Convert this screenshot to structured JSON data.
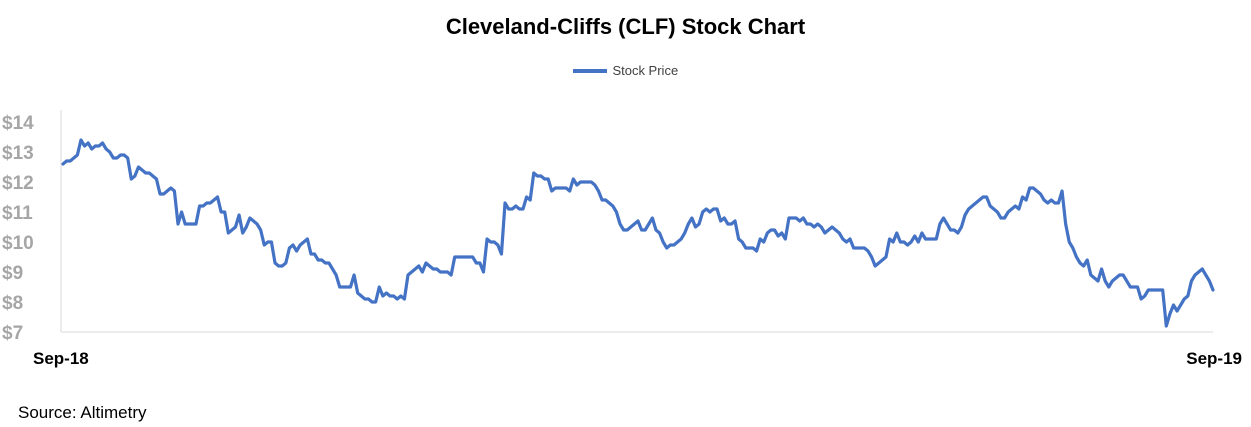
{
  "chart_data": {
    "type": "line",
    "title": "Cleveland-Cliffs (CLF) Stock Chart",
    "legend": "top-center",
    "series": [
      {
        "name": "Stock Price",
        "color": "#4472C4",
        "values": [
          12.6,
          12.7,
          12.7,
          12.8,
          12.9,
          13.4,
          13.2,
          13.3,
          13.1,
          13.2,
          13.2,
          13.3,
          13.1,
          13.0,
          12.8,
          12.8,
          12.9,
          12.9,
          12.8,
          12.1,
          12.2,
          12.5,
          12.4,
          12.3,
          12.3,
          12.2,
          12.1,
          11.6,
          11.6,
          11.7,
          11.8,
          11.7,
          10.6,
          11.0,
          10.6,
          10.6,
          10.6,
          10.6,
          11.2,
          11.2,
          11.3,
          11.3,
          11.4,
          11.5,
          11.0,
          11.0,
          10.3,
          10.4,
          10.5,
          10.9,
          10.3,
          10.5,
          10.8,
          10.7,
          10.6,
          10.4,
          9.9,
          10.0,
          10.0,
          9.3,
          9.2,
          9.2,
          9.3,
          9.8,
          9.9,
          9.7,
          9.9,
          10.0,
          10.1,
          9.6,
          9.6,
          9.4,
          9.4,
          9.3,
          9.3,
          9.1,
          8.9,
          8.5,
          8.5,
          8.5,
          8.5,
          8.9,
          8.3,
          8.2,
          8.1,
          8.1,
          8.0,
          8.0,
          8.5,
          8.2,
          8.3,
          8.2,
          8.2,
          8.1,
          8.2,
          8.1,
          8.9,
          9.0,
          9.1,
          9.2,
          9.0,
          9.3,
          9.2,
          9.1,
          9.1,
          9.0,
          9.0,
          9.0,
          8.9,
          9.5,
          9.5,
          9.5,
          9.5,
          9.5,
          9.5,
          9.3,
          9.3,
          9.0,
          10.1,
          10.0,
          10.0,
          9.9,
          9.6,
          11.3,
          11.1,
          11.1,
          11.2,
          11.1,
          11.1,
          11.5,
          11.4,
          12.3,
          12.2,
          12.2,
          12.1,
          12.1,
          11.7,
          11.8,
          11.8,
          11.8,
          11.8,
          11.7,
          12.1,
          11.9,
          12.0,
          12.0,
          12.0,
          12.0,
          11.9,
          11.7,
          11.4,
          11.4,
          11.3,
          11.2,
          11.0,
          10.6,
          10.4,
          10.4,
          10.5,
          10.6,
          10.7,
          10.4,
          10.4,
          10.6,
          10.8,
          10.4,
          10.3,
          10.0,
          9.8,
          9.9,
          9.9,
          10.0,
          10.1,
          10.3,
          10.6,
          10.8,
          10.5,
          10.6,
          11.0,
          11.1,
          11.0,
          11.1,
          11.1,
          10.7,
          10.8,
          10.6,
          10.6,
          10.7,
          10.1,
          10.0,
          9.8,
          9.8,
          9.8,
          9.7,
          10.1,
          10.0,
          10.3,
          10.4,
          10.4,
          10.2,
          10.3,
          10.1,
          10.8,
          10.8,
          10.8,
          10.7,
          10.8,
          10.6,
          10.6,
          10.5,
          10.6,
          10.5,
          10.3,
          10.4,
          10.5,
          10.4,
          10.3,
          10.1,
          10.0,
          10.1,
          9.8,
          9.8,
          9.8,
          9.8,
          9.7,
          9.5,
          9.2,
          9.3,
          9.4,
          9.5,
          10.1,
          10.0,
          10.3,
          10.0,
          10.0,
          9.9,
          10.0,
          10.2,
          10.0,
          10.3,
          10.1,
          10.1,
          10.1,
          10.1,
          10.6,
          10.8,
          10.6,
          10.4,
          10.4,
          10.3,
          10.5,
          10.9,
          11.1,
          11.2,
          11.3,
          11.4,
          11.5,
          11.5,
          11.2,
          11.1,
          11.0,
          10.8,
          10.8,
          11.0,
          11.1,
          11.2,
          11.1,
          11.5,
          11.4,
          11.8,
          11.8,
          11.7,
          11.6,
          11.4,
          11.3,
          11.4,
          11.3,
          11.3,
          11.7,
          10.6,
          10.0,
          9.8,
          9.5,
          9.3,
          9.2,
          9.4,
          8.9,
          8.8,
          8.7,
          9.1,
          8.7,
          8.5,
          8.7,
          8.8,
          8.9,
          8.9,
          8.7,
          8.5,
          8.5,
          8.5,
          8.1,
          8.2,
          8.4,
          8.4,
          8.4,
          8.4,
          8.4,
          7.2,
          7.6,
          7.9,
          7.7,
          7.9,
          8.1,
          8.2,
          8.7,
          8.9,
          9.0,
          9.1,
          8.9,
          8.7,
          8.4
        ]
      }
    ],
    "x_labels": [
      "Sep-18",
      "Sep-19"
    ],
    "y_ticks": [
      "$14",
      "$13",
      "$12",
      "$11",
      "$10",
      "$9",
      "$8",
      "$7"
    ],
    "ylim": [
      7,
      14.4
    ],
    "grid": false
  },
  "source": "Source: Altimetry"
}
